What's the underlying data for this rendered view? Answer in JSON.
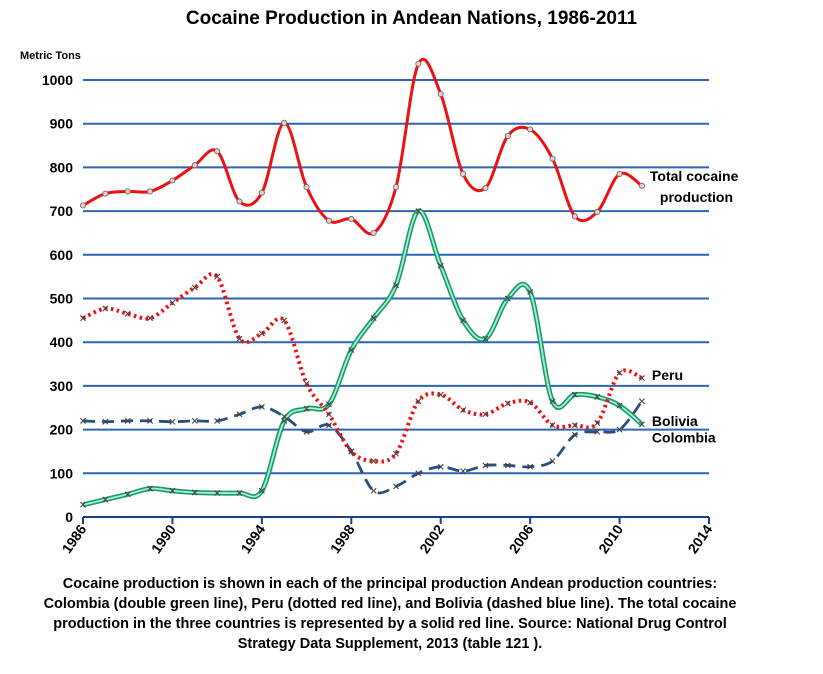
{
  "chart_data": {
    "type": "line",
    "title": "Cocaine Production in Andean Nations, 1986-2011",
    "ylabel": "Metric Tons",
    "xlabel": "",
    "xlim": [
      1986,
      2014
    ],
    "ylim": [
      0,
      1000
    ],
    "x_ticks": [
      "1986",
      "1990",
      "1994",
      "1998",
      "2002",
      "2006",
      "2010",
      "2014"
    ],
    "y_ticks": [
      "0",
      "100",
      "200",
      "300",
      "400",
      "500",
      "600",
      "700",
      "800",
      "900",
      "1000"
    ],
    "grid": true,
    "series": [
      {
        "name": "Total cocaine production",
        "label_lines": [
          "Total cocaine",
          "production"
        ],
        "style": "solid",
        "color": "#ee1111",
        "marker": "circle",
        "x": [
          1986,
          1987,
          1988,
          1989,
          1990,
          1991,
          1992,
          1993,
          1994,
          1995,
          1996,
          1997,
          1998,
          1999,
          2000,
          2001,
          2002,
          2003,
          2004,
          2005,
          2006,
          2007,
          2008,
          2009,
          2010,
          2011
        ],
        "values": [
          713,
          740,
          745,
          745,
          770,
          805,
          837,
          722,
          742,
          902,
          755,
          678,
          682,
          650,
          755,
          1037,
          968,
          785,
          753,
          872,
          887,
          820,
          688,
          698,
          785,
          758
        ]
      },
      {
        "name": "Peru",
        "label_lines": [
          "Peru"
        ],
        "style": "dotted",
        "color": "#ee1111",
        "marker": "x",
        "x": [
          1986,
          1987,
          1988,
          1989,
          1990,
          1991,
          1992,
          1993,
          1994,
          1995,
          1996,
          1997,
          1998,
          1999,
          2000,
          2001,
          2002,
          2003,
          2004,
          2005,
          2006,
          2007,
          2008,
          2009,
          2010,
          2011
        ],
        "values": [
          455,
          477,
          465,
          455,
          490,
          525,
          550,
          408,
          420,
          450,
          305,
          235,
          150,
          128,
          145,
          265,
          280,
          245,
          235,
          260,
          262,
          210,
          210,
          215,
          330,
          318
        ]
      },
      {
        "name": "Bolivia",
        "label_lines": [
          "Bolivia"
        ],
        "style": "dashed",
        "color": "#2a4f7a",
        "marker": "x",
        "x": [
          1986,
          1987,
          1988,
          1989,
          1990,
          1991,
          1992,
          1993,
          1994,
          1995,
          1996,
          1997,
          1998,
          1999,
          2000,
          2001,
          2002,
          2003,
          2004,
          2005,
          2006,
          2007,
          2008,
          2009,
          2010,
          2011
        ],
        "values": [
          220,
          218,
          220,
          220,
          218,
          220,
          220,
          235,
          252,
          230,
          195,
          210,
          150,
          60,
          70,
          100,
          115,
          105,
          118,
          118,
          115,
          128,
          188,
          195,
          200,
          265
        ]
      },
      {
        "name": "Colombia",
        "label_lines": [
          "Colombia"
        ],
        "style": "double",
        "color": "#20c888",
        "marker": "x",
        "x": [
          1986,
          1987,
          1988,
          1989,
          1990,
          1991,
          1992,
          1993,
          1994,
          1995,
          1996,
          1997,
          1998,
          1999,
          2000,
          2001,
          2002,
          2003,
          2004,
          2005,
          2006,
          2007,
          2008,
          2009,
          2010,
          2011
        ],
        "values": [
          28,
          40,
          52,
          65,
          60,
          56,
          55,
          55,
          60,
          220,
          248,
          258,
          382,
          455,
          530,
          700,
          575,
          450,
          408,
          500,
          515,
          265,
          280,
          275,
          255,
          212
        ]
      }
    ]
  },
  "caption": "Cocaine production is shown in each of the principal production Andean production countries: Colombia (double green line), Peru (dotted red line), and Bolivia (dashed blue line). The total cocaine production in the three countries is represented by a solid red line. Source: National Drug Control Strategy Data Supplement, 2013 (table 121 )."
}
